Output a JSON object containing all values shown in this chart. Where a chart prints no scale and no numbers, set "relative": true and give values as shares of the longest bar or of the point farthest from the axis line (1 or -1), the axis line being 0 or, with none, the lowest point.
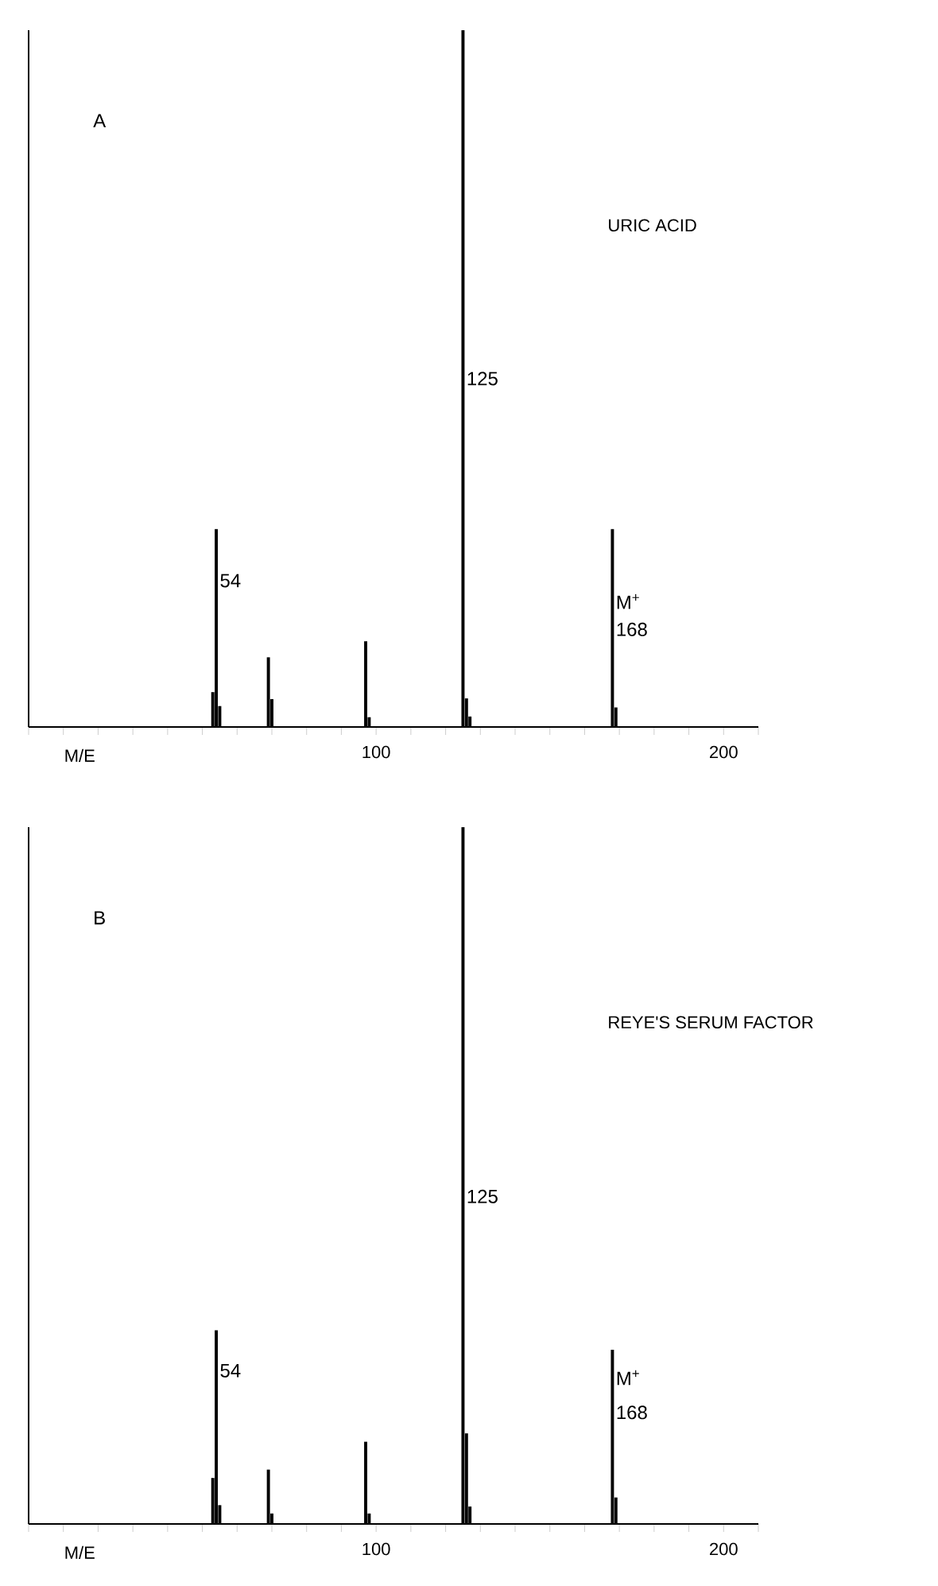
{
  "chart_data": [
    {
      "type": "bar",
      "title": "A",
      "subtitle": "URIC ACID",
      "xlabel": "M/E",
      "relative": true,
      "color": "#000000",
      "tick_labels": "x",
      "x": [
        53,
        54,
        55,
        69,
        70,
        97,
        98,
        125,
        126,
        127,
        168,
        169
      ],
      "values": [
        0.05,
        0.284,
        0.03,
        0.1,
        0.04,
        0.123,
        0.014,
        1,
        0.041,
        0.015,
        0.284,
        0.028
      ],
      "xlim": [
        0,
        210
      ],
      "xticks": [
        {
          "value": 0,
          "label": null
        },
        {
          "value": 10,
          "label": null
        },
        {
          "value": 20,
          "label": null
        },
        {
          "value": 30,
          "label": null
        },
        {
          "value": 40,
          "label": null
        },
        {
          "value": 50,
          "label": null
        },
        {
          "value": 60,
          "label": null
        },
        {
          "value": 70,
          "label": null
        },
        {
          "value": 80,
          "label": null
        },
        {
          "value": 90,
          "label": null
        },
        {
          "value": 100,
          "label": "100"
        },
        {
          "value": 110,
          "label": null
        },
        {
          "value": 120,
          "label": null
        },
        {
          "value": 130,
          "label": null
        },
        {
          "value": 140,
          "label": null
        },
        {
          "value": 150,
          "label": null
        },
        {
          "value": 160,
          "label": null
        },
        {
          "value": 170,
          "label": null
        },
        {
          "value": 180,
          "label": null
        },
        {
          "value": 190,
          "label": null
        },
        {
          "value": 200,
          "label": "200"
        },
        {
          "value": 210,
          "label": null
        }
      ],
      "annotations": [
        {
          "text": "54",
          "x": 54,
          "y": 0.21
        },
        {
          "text": "125",
          "x": 125,
          "y": 0.5
        },
        {
          "text": "M$^{+}$",
          "x": 168,
          "y": 0.18
        },
        {
          "text": "168",
          "x": 168,
          "y": 0.14
        }
      ]
    },
    {
      "type": "bar",
      "title": "B",
      "subtitle": "REYE'S SERUM FACTOR",
      "xlabel": "M/E",
      "relative": true,
      "color": "#000000",
      "tick_labels": "x",
      "x": [
        53,
        54,
        55,
        69,
        70,
        97,
        98,
        125,
        126,
        127,
        168,
        169
      ],
      "values": [
        0.066,
        0.278,
        0.027,
        0.078,
        0.015,
        0.118,
        0.015,
        1,
        0.13,
        0.025,
        0.25,
        0.038
      ],
      "xlim": [
        0,
        210
      ],
      "xticks": [
        {
          "value": 0,
          "label": null
        },
        {
          "value": 10,
          "label": null
        },
        {
          "value": 20,
          "label": null
        },
        {
          "value": 30,
          "label": null
        },
        {
          "value": 40,
          "label": null
        },
        {
          "value": 50,
          "label": null
        },
        {
          "value": 60,
          "label": null
        },
        {
          "value": 70,
          "label": null
        },
        {
          "value": 80,
          "label": null
        },
        {
          "value": 90,
          "label": null
        },
        {
          "value": 100,
          "label": "100"
        },
        {
          "value": 110,
          "label": null
        },
        {
          "value": 120,
          "label": null
        },
        {
          "value": 130,
          "label": null
        },
        {
          "value": 140,
          "label": null
        },
        {
          "value": 150,
          "label": null
        },
        {
          "value": 160,
          "label": null
        },
        {
          "value": 170,
          "label": null
        },
        {
          "value": 180,
          "label": null
        },
        {
          "value": 190,
          "label": null
        },
        {
          "value": 200,
          "label": "200"
        },
        {
          "value": 210,
          "label": null
        }
      ],
      "annotations": [
        {
          "text": "54",
          "x": 54,
          "y": 0.22
        },
        {
          "text": "125",
          "x": 125,
          "y": 0.47
        },
        {
          "text": "M$^{+}$",
          "x": 168,
          "y": 0.21
        },
        {
          "text": "168",
          "x": 168,
          "y": 0.16
        }
      ]
    }
  ]
}
